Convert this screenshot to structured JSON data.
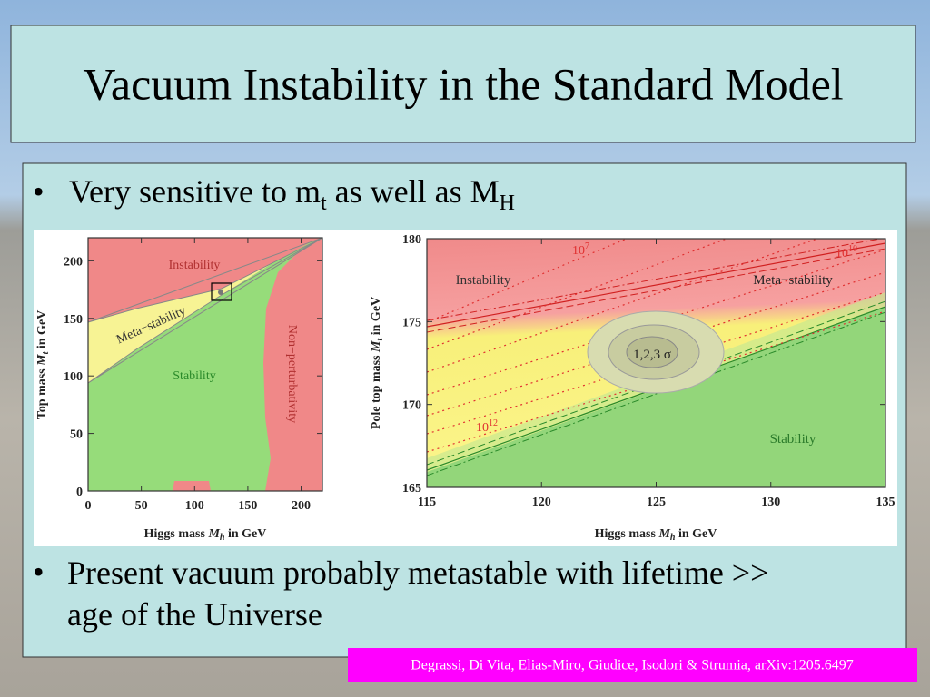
{
  "title": "Vacuum Instability in the Standard Model",
  "bullets": [
    {
      "parts": [
        "Very sensitive to m",
        "t",
        " as well as M",
        "H"
      ]
    },
    {
      "text": "Present vacuum probably metastable with lifetime >> age of the Universe"
    }
  ],
  "left_plot": {
    "xlabel": [
      "Higgs mass ",
      "M",
      "h",
      " in GeV"
    ],
    "ylabel": [
      "Top mass ",
      "M",
      "t",
      " in GeV"
    ],
    "xlim": [
      0,
      220
    ],
    "xticks": [
      0,
      50,
      100,
      150,
      200
    ],
    "ylim": [
      0,
      220
    ],
    "yticks": [
      0,
      50,
      100,
      150,
      200
    ],
    "regions": [
      "Instability",
      "Meta−stability",
      "Stability",
      "Non−perturbativity"
    ]
  },
  "right_plot": {
    "xlabel": [
      "Higgs mass ",
      "M",
      "h",
      " in GeV"
    ],
    "ylabel": [
      "Pole top mass ",
      "M",
      "t",
      " in GeV"
    ],
    "xlim": [
      115,
      135
    ],
    "xticks": [
      115,
      120,
      125,
      130,
      135
    ],
    "ylim": [
      165,
      180
    ],
    "yticks": [
      165,
      170,
      175,
      180
    ],
    "regions": [
      "Instability",
      "Meta−stability",
      "Stability"
    ],
    "contour_label": "1,2,3 σ",
    "annotations": [
      {
        "base": "10",
        "exp": "7"
      },
      {
        "base": "10",
        "exp": "10"
      },
      {
        "base": "10",
        "exp": "12"
      }
    ]
  },
  "citation": "Degrassi, Di Vita, Elias-Miro, Giudice, Isodori & Strumia, arXiv:1205.6497"
}
